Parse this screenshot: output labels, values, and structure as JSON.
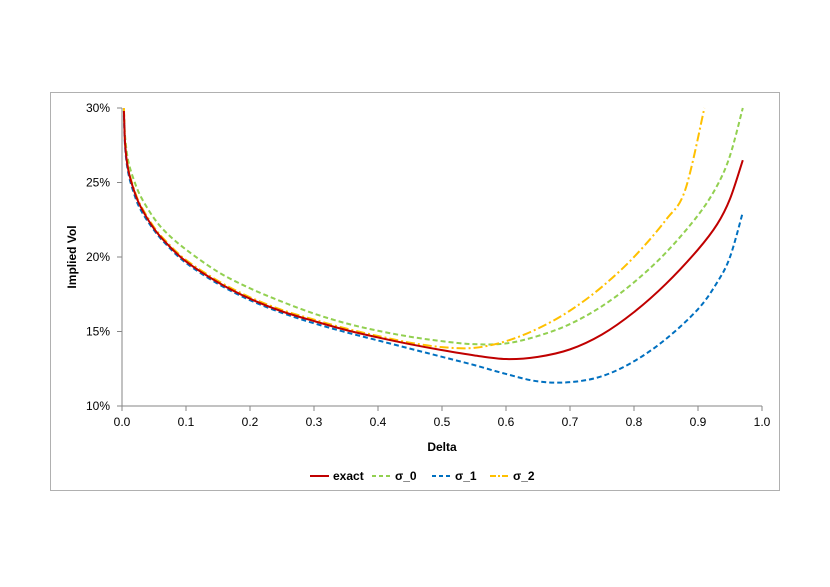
{
  "chart_data": {
    "type": "line",
    "title": "",
    "xlabel": "Delta",
    "ylabel": "Implied Vol",
    "xlim": [
      0.0,
      1.0
    ],
    "ylim": [
      0.1,
      0.3
    ],
    "x_ticks": [
      0.0,
      0.1,
      0.2,
      0.3,
      0.4,
      0.5,
      0.6,
      0.7,
      0.8,
      0.9,
      1.0
    ],
    "x_tick_labels": [
      "0.0",
      "0.1",
      "0.2",
      "0.3",
      "0.4",
      "0.5",
      "0.6",
      "0.7",
      "0.8",
      "0.9",
      "1.0"
    ],
    "y_ticks": [
      0.1,
      0.15,
      0.2,
      0.25,
      0.3
    ],
    "y_tick_labels": [
      "10%",
      "15%",
      "20%",
      "25%",
      "30%"
    ],
    "grid": false,
    "legend_position": "bottom",
    "series": [
      {
        "name": "exact",
        "color": "#c00000",
        "dash": "solid",
        "x": [
          0.003,
          0.005,
          0.01,
          0.02,
          0.03,
          0.05,
          0.07,
          0.1,
          0.15,
          0.2,
          0.25,
          0.3,
          0.35,
          0.4,
          0.45,
          0.5,
          0.55,
          0.6,
          0.65,
          0.7,
          0.75,
          0.8,
          0.85,
          0.9,
          0.93,
          0.95,
          0.97
        ],
        "y": [
          0.298,
          0.275,
          0.258,
          0.243,
          0.233,
          0.219,
          0.209,
          0.197,
          0.183,
          0.172,
          0.1635,
          0.157,
          0.151,
          0.146,
          0.1415,
          0.1375,
          0.134,
          0.1315,
          0.133,
          0.138,
          0.148,
          0.163,
          0.182,
          0.205,
          0.222,
          0.239,
          0.265
        ]
      },
      {
        "name": "σ_0",
        "color": "#92d050",
        "dash": "dashed",
        "x": [
          0.003,
          0.005,
          0.01,
          0.02,
          0.03,
          0.05,
          0.07,
          0.1,
          0.15,
          0.2,
          0.25,
          0.3,
          0.35,
          0.4,
          0.45,
          0.5,
          0.55,
          0.6,
          0.65,
          0.7,
          0.75,
          0.8,
          0.85,
          0.9,
          0.93,
          0.95,
          0.97
        ],
        "y": [
          0.298,
          0.28,
          0.264,
          0.25,
          0.24,
          0.226,
          0.216,
          0.205,
          0.19,
          0.179,
          0.17,
          0.162,
          0.1555,
          0.1505,
          0.1465,
          0.1435,
          0.1415,
          0.142,
          0.147,
          0.155,
          0.167,
          0.183,
          0.203,
          0.228,
          0.248,
          0.268,
          0.3
        ]
      },
      {
        "name": "σ_1",
        "color": "#0070c0",
        "dash": "dashed",
        "x": [
          0.003,
          0.005,
          0.01,
          0.02,
          0.03,
          0.05,
          0.07,
          0.1,
          0.15,
          0.2,
          0.25,
          0.3,
          0.35,
          0.4,
          0.45,
          0.5,
          0.55,
          0.6,
          0.65,
          0.7,
          0.75,
          0.8,
          0.85,
          0.9,
          0.93,
          0.95,
          0.97
        ],
        "y": [
          0.295,
          0.273,
          0.256,
          0.241,
          0.231,
          0.218,
          0.208,
          0.196,
          0.182,
          0.171,
          0.1625,
          0.1555,
          0.1495,
          0.144,
          0.1385,
          0.133,
          0.1275,
          0.1215,
          0.1165,
          0.116,
          0.12,
          0.13,
          0.145,
          0.165,
          0.183,
          0.2,
          0.23
        ]
      },
      {
        "name": "σ_2",
        "color": "#ffc000",
        "dash": "dashdot",
        "x": [
          0.003,
          0.005,
          0.01,
          0.02,
          0.03,
          0.05,
          0.07,
          0.1,
          0.15,
          0.2,
          0.25,
          0.3,
          0.35,
          0.4,
          0.45,
          0.5,
          0.55,
          0.6,
          0.65,
          0.7,
          0.75,
          0.8,
          0.85,
          0.88,
          0.91
        ],
        "y": [
          0.3,
          0.276,
          0.259,
          0.244,
          0.234,
          0.22,
          0.21,
          0.198,
          0.184,
          0.173,
          0.1645,
          0.158,
          0.152,
          0.147,
          0.1425,
          0.1395,
          0.139,
          0.1435,
          0.152,
          0.164,
          0.18,
          0.2,
          0.225,
          0.245,
          0.3
        ]
      }
    ]
  }
}
